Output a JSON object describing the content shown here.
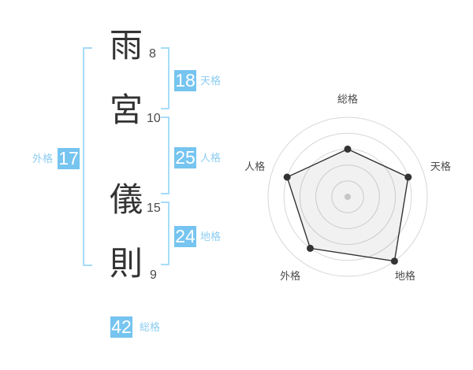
{
  "name_panel": {
    "characters": [
      {
        "char": "雨",
        "strokes": "8"
      },
      {
        "char": "宮",
        "strokes": "10"
      },
      {
        "char": "儀",
        "strokes": "15"
      },
      {
        "char": "則",
        "strokes": "9"
      }
    ],
    "categories": {
      "tenkaku": {
        "label": "天格",
        "value": "18"
      },
      "jinkaku": {
        "label": "人格",
        "value": "25"
      },
      "chikaku": {
        "label": "地格",
        "value": "24"
      },
      "gaikaku": {
        "label": "外格",
        "value": "17"
      },
      "soukaku": {
        "label": "総格",
        "value": "42"
      }
    }
  },
  "colors": {
    "badge_blue": "#76c4f0",
    "bracket_blue": "#a6dcf8",
    "label_blue": "#8ccdf2",
    "kanji_dark": "#333333",
    "stroke_count_gray": "#4a4a4a",
    "radar_ring_gray": "#d7d7d7",
    "radar_label_gray": "#4a4a4a"
  },
  "chart_data": {
    "type": "radar",
    "categories": [
      "総格",
      "天格",
      "地格",
      "外格",
      "人格"
    ],
    "values": [
      60,
      80,
      100,
      80,
      80
    ],
    "scale_max": 100,
    "rings": 5,
    "start_angle_deg": -90,
    "direction": "clockwise",
    "grid": "circular",
    "legend": "none",
    "fill_color": "rgba(0,0,0,0.055)",
    "line_color": "#333333",
    "point_color": "#333333",
    "center_dot_color": "#c6c6c6"
  }
}
